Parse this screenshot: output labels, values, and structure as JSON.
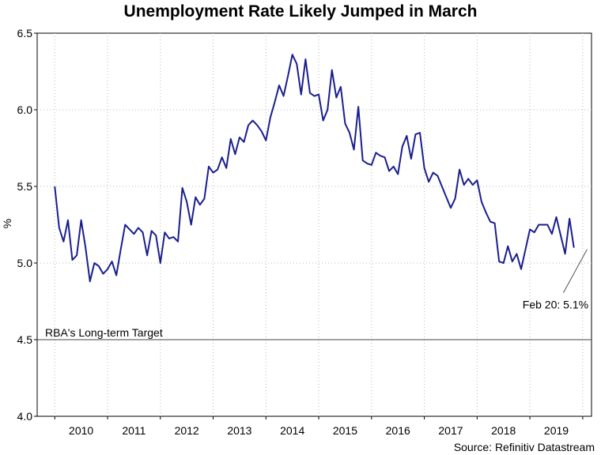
{
  "chart_data": {
    "type": "line",
    "title": "Unemployment Rate Likely Jumped in March",
    "xlabel": "",
    "ylabel": "%",
    "ylim": [
      4.0,
      6.5
    ],
    "xlim": [
      "2009-09",
      "2020-03"
    ],
    "yticks": [
      "4.0",
      "4.5",
      "5.0",
      "5.5",
      "6.0",
      "6.5"
    ],
    "xticks": [
      "2010",
      "2011",
      "2012",
      "2013",
      "2014",
      "2015",
      "2016",
      "2017",
      "2018",
      "2019"
    ],
    "grid": true,
    "series": [
      {
        "color": "#1a1f8c",
        "start": "2010-01",
        "frequency": "monthly",
        "values": [
          5.5,
          5.23,
          5.14,
          5.28,
          5.02,
          5.05,
          5.28,
          5.1,
          4.88,
          5.0,
          4.98,
          4.93,
          4.96,
          5.01,
          4.92,
          5.09,
          5.25,
          5.22,
          5.19,
          5.23,
          5.2,
          5.05,
          5.21,
          5.18,
          5.0,
          5.2,
          5.16,
          5.17,
          5.14,
          5.49,
          5.4,
          5.25,
          5.43,
          5.38,
          5.42,
          5.63,
          5.59,
          5.61,
          5.69,
          5.62,
          5.81,
          5.71,
          5.82,
          5.79,
          5.9,
          5.93,
          5.9,
          5.86,
          5.8,
          5.95,
          6.05,
          6.16,
          6.09,
          6.22,
          6.36,
          6.3,
          6.1,
          6.33,
          6.11,
          6.09,
          6.1,
          5.93,
          6.0,
          6.26,
          6.08,
          6.15,
          5.91,
          5.85,
          5.74,
          6.02,
          5.67,
          5.65,
          5.64,
          5.72,
          5.7,
          5.69,
          5.6,
          5.63,
          5.58,
          5.76,
          5.83,
          5.68,
          5.84,
          5.85,
          5.62,
          5.53,
          5.59,
          5.57,
          5.5,
          5.43,
          5.36,
          5.42,
          5.61,
          5.51,
          5.55,
          5.51,
          5.54,
          5.4,
          5.33,
          5.27,
          5.26,
          5.01,
          5.0,
          5.11,
          5.01,
          5.06,
          4.96,
          5.09,
          5.22,
          5.2,
          5.25,
          5.25,
          5.25,
          5.19,
          5.3,
          5.18,
          5.06,
          5.29,
          5.1
        ]
      }
    ],
    "reference_line": {
      "value": 4.5,
      "label": "RBA's Long-term Target",
      "color": "#444444"
    },
    "annotation": {
      "text": "Feb 20: 5.1%",
      "x": "2020-02",
      "y": 5.1
    }
  },
  "source": "Source: Refinitiv Datastream"
}
